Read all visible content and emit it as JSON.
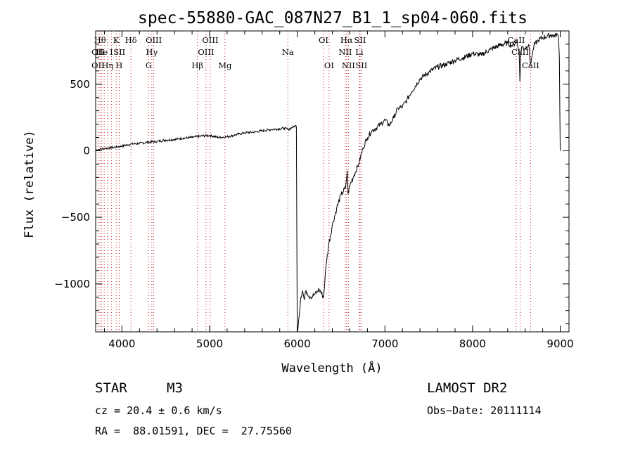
{
  "chart_data": {
    "type": "line",
    "title": "spec-55880-GAC_087N27_B1_1_sp04-060.fits",
    "xlabel": "Wavelength (Å)",
    "ylabel": "Flux (relative)",
    "xlim": [
      3700,
      9100
    ],
    "ylim": [
      -1360,
      900
    ],
    "x_ticks": [
      4000,
      5000,
      6000,
      7000,
      8000,
      9000
    ],
    "x_tick_labels": [
      "4000",
      "5000",
      "6000",
      "7000",
      "8000",
      "9000"
    ],
    "y_ticks": [
      500,
      0,
      -500,
      -1000
    ],
    "y_tick_labels": [
      "500",
      "0",
      "−500",
      "−1000"
    ],
    "grid": false,
    "series": [
      {
        "color": "#000000",
        "x": [
          3700,
          3750,
          3800,
          3850,
          3900,
          3950,
          4000,
          4100,
          4200,
          4300,
          4400,
          4500,
          4600,
          4700,
          4800,
          4900,
          5000,
          5100,
          5200,
          5300,
          5400,
          5500,
          5600,
          5700,
          5800,
          5850,
          5900,
          5940,
          5960,
          5985,
          5990,
          6000,
          6020,
          6040,
          6060,
          6080,
          6100,
          6150,
          6200,
          6250,
          6300,
          6330,
          6360,
          6400,
          6450,
          6500,
          6550,
          6570,
          6580,
          6600,
          6650,
          6700,
          6750,
          6800,
          6850,
          6900,
          6950,
          7000,
          7050,
          7100,
          7150,
          7200,
          7250,
          7300,
          7400,
          7500,
          7600,
          7700,
          7800,
          7900,
          8000,
          8100,
          8200,
          8300,
          8400,
          8450,
          8500,
          8530,
          8540,
          8550,
          8560,
          8600,
          8640,
          8660,
          8680,
          8700,
          8750,
          8800,
          8850,
          8900,
          8940,
          8960,
          8980,
          8990,
          9000
        ],
        "y": [
          5,
          12,
          18,
          22,
          25,
          30,
          35,
          50,
          55,
          65,
          70,
          80,
          85,
          95,
          100,
          110,
          115,
          100,
          105,
          120,
          135,
          140,
          150,
          160,
          165,
          170,
          160,
          175,
          180,
          190,
          180,
          -1360,
          -1250,
          -1100,
          -1050,
          -1120,
          -1050,
          -1100,
          -1080,
          -1040,
          -1100,
          -850,
          -700,
          -560,
          -430,
          -330,
          -280,
          -150,
          -320,
          -260,
          -180,
          -100,
          20,
          100,
          150,
          170,
          200,
          230,
          190,
          250,
          320,
          330,
          380,
          440,
          540,
          590,
          630,
          650,
          680,
          700,
          730,
          720,
          760,
          790,
          810,
          790,
          820,
          760,
          520,
          730,
          780,
          770,
          800,
          650,
          720,
          790,
          830,
          850,
          860,
          870,
          860,
          880,
          850,
          700,
          0
        ]
      }
    ],
    "annotations": [
      {
        "label": "OII",
        "x": 3727,
        "row": 2
      },
      {
        "label": "OII",
        "x": 3727,
        "row": 3
      },
      {
        "label": "Hθ",
        "x": 3750,
        "row": 1
      },
      {
        "label": "He",
        "x": 3770,
        "row": 2
      },
      {
        "label": "Hη",
        "x": 3835,
        "row": 3
      },
      {
        "label": "K",
        "x": 3934,
        "row": 1
      },
      {
        "label": "I",
        "x": 3880,
        "row": 2
      },
      {
        "label": "SII",
        "x": 3970,
        "row": 2
      },
      {
        "label": "H",
        "x": 3968,
        "row": 3
      },
      {
        "label": "Hδ",
        "x": 4102,
        "row": 1
      },
      {
        "label": "OIII",
        "x": 4363,
        "row": 1
      },
      {
        "label": "Hγ",
        "x": 4340,
        "row": 2
      },
      {
        "label": "G",
        "x": 4304,
        "row": 3
      },
      {
        "label": "Hβ",
        "x": 4861,
        "row": 3
      },
      {
        "label": "OIII",
        "x": 5007,
        "row": 1
      },
      {
        "label": "OIII",
        "x": 4959,
        "row": 2
      },
      {
        "label": "Mg",
        "x": 5175,
        "row": 3
      },
      {
        "label": "Na",
        "x": 5893,
        "row": 2
      },
      {
        "label": "OI",
        "x": 6300,
        "row": 1
      },
      {
        "label": "OI",
        "x": 6363,
        "row": 3
      },
      {
        "label": "Hα",
        "x": 6563,
        "row": 1
      },
      {
        "label": "SII",
        "x": 6716,
        "row": 1
      },
      {
        "label": "NII",
        "x": 6548,
        "row": 2
      },
      {
        "label": "Li",
        "x": 6708,
        "row": 2
      },
      {
        "label": "NII",
        "x": 6584,
        "row": 3
      },
      {
        "label": "SII",
        "x": 6731,
        "row": 3
      },
      {
        "label": "CaII",
        "x": 8498,
        "row": 1
      },
      {
        "label": "CaII",
        "x": 8542,
        "row": 2
      },
      {
        "label": "CaII",
        "x": 8662,
        "row": 3
      }
    ],
    "line_markers": [
      3727,
      3750,
      3770,
      3798,
      3835,
      3880,
      3934,
      3968,
      3970,
      4102,
      4304,
      4340,
      4363,
      4861,
      4959,
      5007,
      5175,
      5893,
      6300,
      6363,
      6548,
      6563,
      6584,
      6708,
      6716,
      6731,
      8498,
      8542,
      8662
    ]
  },
  "info": {
    "object_class": "STAR",
    "subclass": "M3",
    "survey": "LAMOST DR2",
    "redshift": "cz = 20.4 ± 0.6 km/s",
    "obs_date": "Obs−Date: 20111114",
    "coords": "RA =  88.01591, DEC =  27.75560"
  }
}
